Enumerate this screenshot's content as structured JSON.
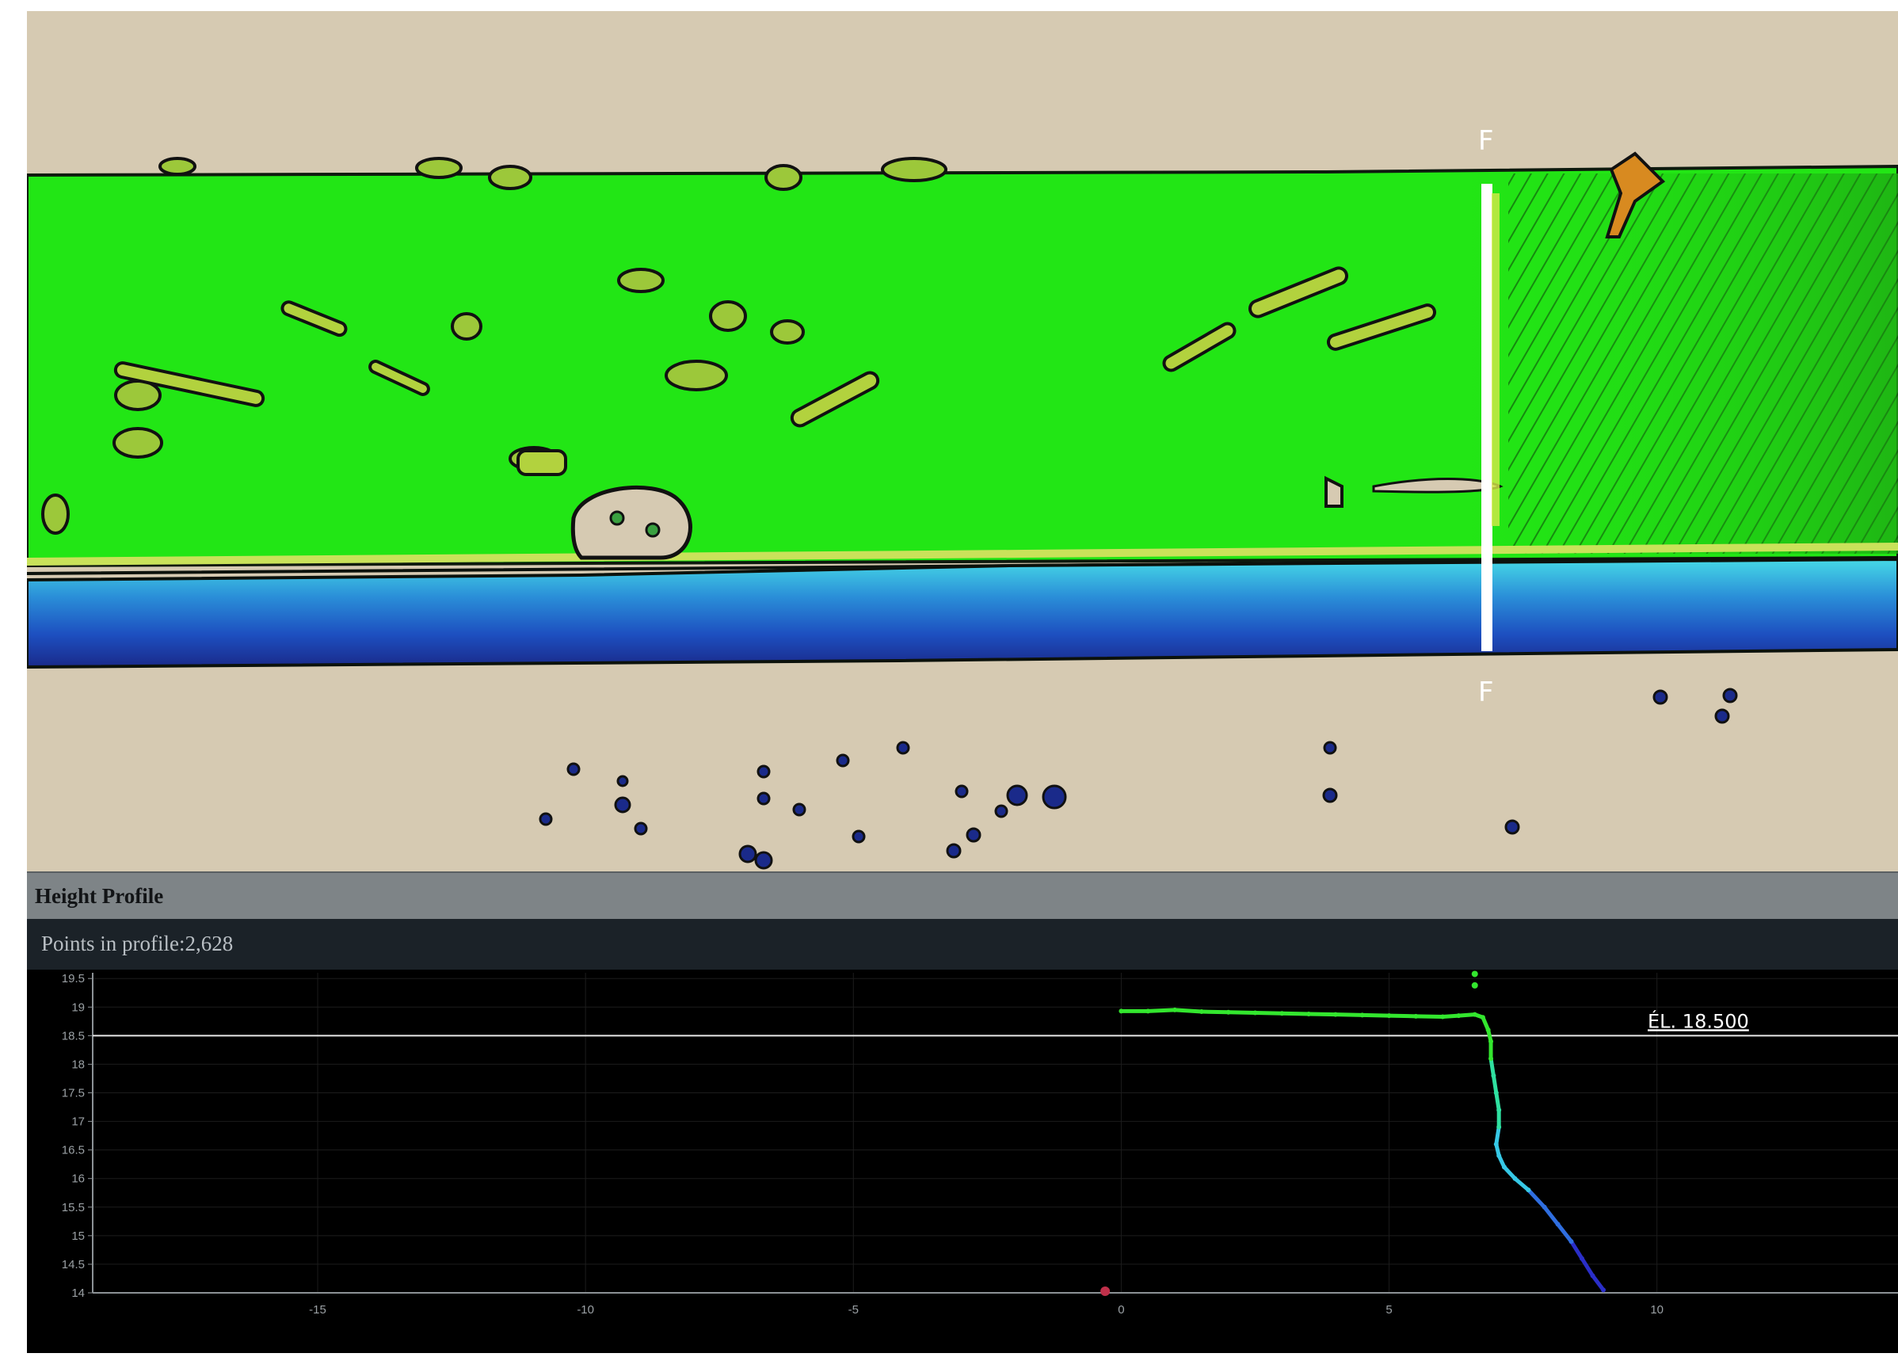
{
  "viewer": {
    "section_label_top": "F",
    "section_label_bottom": "F"
  },
  "profile": {
    "title": "Height Profile",
    "points_label": "Points in profile:",
    "points_count": "2,628",
    "elevation_line_label": "ÉL. 18.500",
    "elevation_line_value": 18.5
  },
  "colors": {
    "background": "#d6cab2",
    "terrain_green": "#22e615",
    "water_blue": "#1a3fb0",
    "header_bar": "#7e8487",
    "chart_background": "#000000"
  },
  "chart_data": {
    "type": "scatter",
    "x_ticks": [
      -15,
      -10,
      -5,
      0,
      5,
      10
    ],
    "y_ticks": [
      14,
      14.5,
      15,
      15.5,
      16,
      16.5,
      17,
      17.5,
      18,
      18.5,
      19,
      19.5
    ],
    "xlim": [
      -19.2,
      14.5
    ],
    "ylim": [
      14,
      19.6
    ],
    "grid": true,
    "reference_line": {
      "y": 18.5,
      "label": "ÉL. 18.500"
    },
    "series": [
      {
        "points": [
          [
            0,
            18.93
          ],
          [
            0.5,
            18.93
          ],
          [
            1,
            18.95
          ],
          [
            1.5,
            18.92
          ],
          [
            2,
            18.91
          ],
          [
            2.5,
            18.9
          ],
          [
            3,
            18.89
          ],
          [
            3.5,
            18.88
          ],
          [
            4,
            18.87
          ],
          [
            4.5,
            18.86
          ],
          [
            5,
            18.85
          ],
          [
            5.5,
            18.84
          ],
          [
            6,
            18.83
          ],
          [
            6.3,
            18.85
          ],
          [
            6.6,
            18.87
          ],
          [
            6.75,
            18.82
          ],
          [
            6.85,
            18.6
          ],
          [
            6.9,
            18.4
          ],
          [
            6.9,
            18.1
          ],
          [
            6.95,
            17.8
          ],
          [
            7.0,
            17.5
          ],
          [
            7.05,
            17.2
          ],
          [
            7.05,
            16.9
          ],
          [
            7.0,
            16.6
          ],
          [
            7.05,
            16.4
          ],
          [
            7.15,
            16.2
          ],
          [
            7.35,
            16.0
          ],
          [
            7.6,
            15.8
          ],
          [
            7.9,
            15.5
          ],
          [
            8.15,
            15.2
          ],
          [
            8.4,
            14.9
          ],
          [
            8.6,
            14.6
          ],
          [
            8.8,
            14.3
          ],
          [
            9.0,
            14.05
          ]
        ],
        "outliers": [
          [
            6.6,
            19.58
          ],
          [
            6.6,
            19.38
          ]
        ]
      }
    ]
  }
}
